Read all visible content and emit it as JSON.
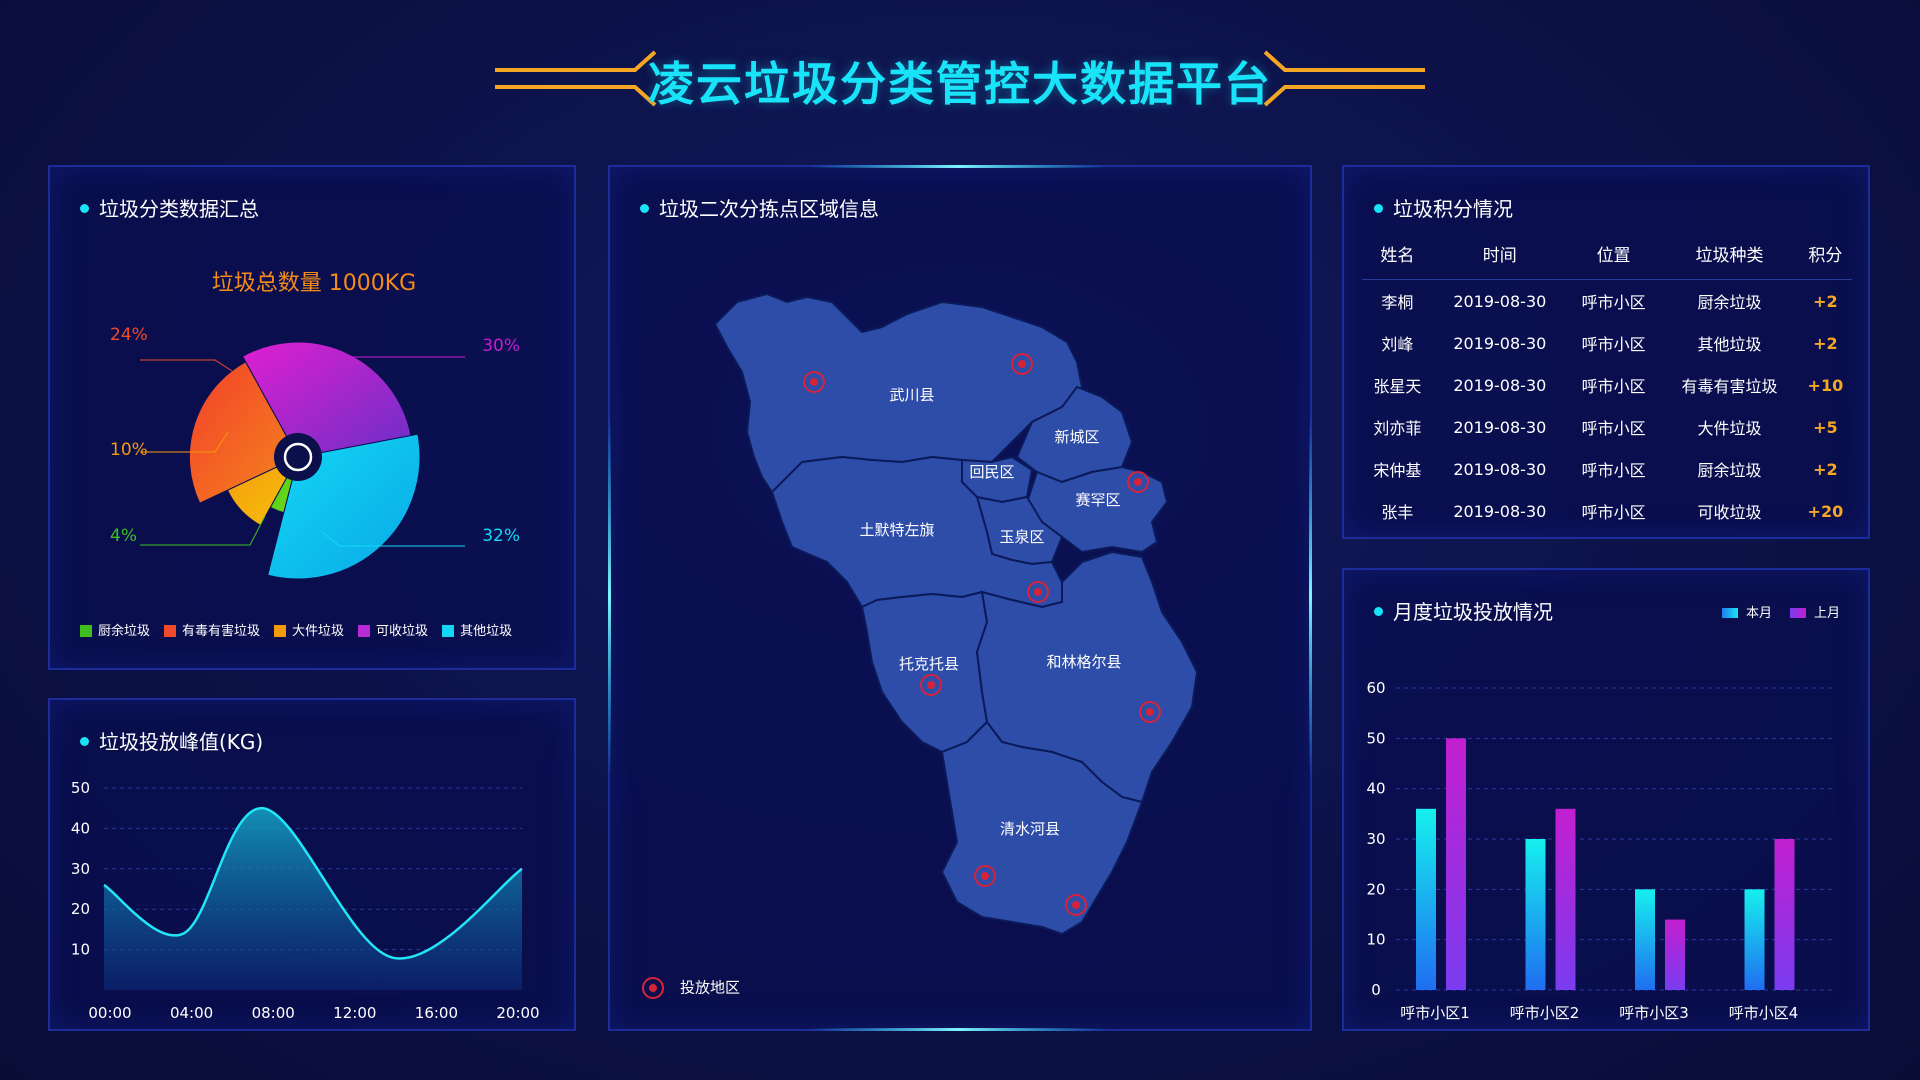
{
  "header": {
    "title": "凌云垃圾分类管控大数据平台"
  },
  "colors": {
    "accent": "#19e3f8",
    "orange": "#f5a623",
    "panel_border": "#1c2c9a",
    "map_fill": "#2e4da8",
    "marker": "#d6233a"
  },
  "summary": {
    "title": "垃圾分类数据汇总",
    "total_label": "垃圾总数量 1000KG",
    "legend": [
      {
        "name": "厨余垃圾",
        "color": "#3fbf1e"
      },
      {
        "name": "有毒有害垃圾",
        "color": "#f24a2a"
      },
      {
        "name": "大件垃圾",
        "color": "#f59a0c"
      },
      {
        "name": "可收垃圾",
        "color": "#b62bd6"
      },
      {
        "name": "其他垃圾",
        "color": "#13d8f5"
      }
    ]
  },
  "peak": {
    "title": "垃圾投放峰值(KG)"
  },
  "map": {
    "title": "垃圾二次分拣点区域信息",
    "legend_label": "投放地区",
    "regions": [
      "武川县",
      "新城区",
      "回民区",
      "赛罕区",
      "土默特左旗",
      "玉泉区",
      "托克托县",
      "和林格尔县",
      "清水河县"
    ]
  },
  "points": {
    "title": "垃圾积分情况",
    "headers": [
      "姓名",
      "时间",
      "位置",
      "垃圾种类",
      "积分"
    ],
    "rows": [
      [
        "李桐",
        "2019-08-30",
        "呼市小区",
        "厨余垃圾",
        "+2"
      ],
      [
        "刘峰",
        "2019-08-30",
        "呼市小区",
        "其他垃圾",
        "+2"
      ],
      [
        "张星天",
        "2019-08-30",
        "呼市小区",
        "有毒有害垃圾",
        "+10"
      ],
      [
        "刘亦菲",
        "2019-08-30",
        "呼市小区",
        "大件垃圾",
        "+5"
      ],
      [
        "宋仲基",
        "2019-08-30",
        "呼市小区",
        "厨余垃圾",
        "+2"
      ],
      [
        "张丰",
        "2019-08-30",
        "呼市小区",
        "可收垃圾",
        "+20"
      ]
    ]
  },
  "month": {
    "title": "月度垃圾投放情况"
  },
  "chart_data": [
    {
      "type": "pie",
      "subtype": "rose",
      "title": "垃圾分类数据汇总",
      "categories": [
        "厨余垃圾",
        "有毒有害垃圾",
        "大件垃圾",
        "可收垃圾",
        "其他垃圾"
      ],
      "values": [
        4,
        24,
        10,
        30,
        32
      ],
      "labels": [
        "4%",
        "24%",
        "10%",
        "30%",
        "32%"
      ],
      "colors": [
        "#3fbf1e",
        "#f24a2a",
        "#f59a0c",
        "#c21fd0",
        "#13d8f5"
      ],
      "legend": "bottom"
    },
    {
      "type": "area",
      "title": "垃圾投放峰值(KG)",
      "x": [
        "00:00",
        "04:00",
        "08:00",
        "12:00",
        "16:00",
        "20:00"
      ],
      "y_ticks": [
        10,
        20,
        30,
        40,
        50
      ],
      "points": [
        [
          0,
          26
        ],
        [
          4,
          14
        ],
        [
          8,
          45
        ],
        [
          14.5,
          8
        ],
        [
          21,
          30
        ]
      ],
      "ylim": [
        0,
        50
      ],
      "grid": true
    },
    {
      "type": "bar",
      "title": "月度垃圾投放情况",
      "categories": [
        "呼市小区1",
        "呼市小区2",
        "呼市小区3",
        "呼市小区4"
      ],
      "series": [
        {
          "name": "本月",
          "values": [
            36,
            30,
            20,
            20
          ],
          "color": "#16e6f0"
        },
        {
          "name": "上月",
          "values": [
            50,
            36,
            14,
            30
          ],
          "color": "#b92ee0"
        }
      ],
      "y_ticks": [
        0,
        10,
        20,
        30,
        40,
        50,
        60
      ],
      "ylim": [
        0,
        60
      ],
      "legend": "top-right",
      "grid": true
    }
  ]
}
